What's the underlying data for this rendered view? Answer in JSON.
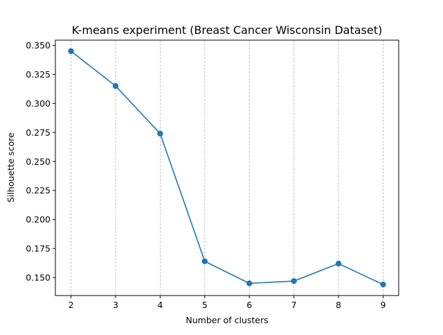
{
  "chart_data": {
    "type": "line",
    "title": "K-means experiment (Breast Cancer Wisconsin Dataset)",
    "xlabel": "Number of clusters",
    "ylabel": "Silhouette score",
    "x": [
      2,
      3,
      4,
      5,
      6,
      7,
      8,
      9
    ],
    "series": [
      {
        "values": [
          0.345,
          0.315,
          0.274,
          0.164,
          0.145,
          0.147,
          0.162,
          0.144
        ]
      }
    ],
    "xticks": [
      "2",
      "3",
      "4",
      "5",
      "6",
      "7",
      "8",
      "9"
    ],
    "yticks": [
      "0.150",
      "0.175",
      "0.200",
      "0.225",
      "0.250",
      "0.275",
      "0.300",
      "0.325",
      "0.350"
    ],
    "xlim": [
      1.65,
      9.35
    ],
    "ylim": [
      0.1345,
      0.3545
    ],
    "grid": "vertical dashed",
    "legend": "none",
    "colors": {
      "line": "#1f77b4",
      "grid": "#b0b0b0",
      "axis": "#000000"
    }
  }
}
